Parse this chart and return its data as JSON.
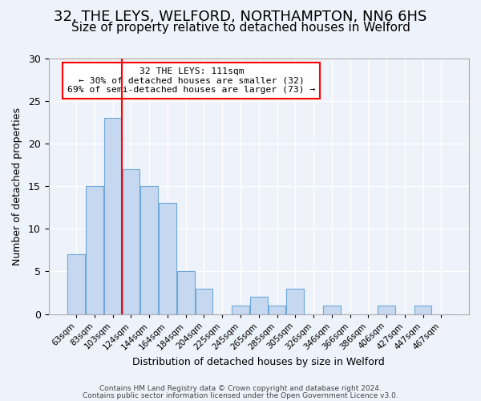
{
  "title": "32, THE LEYS, WELFORD, NORTHAMPTON, NN6 6HS",
  "subtitle": "Size of property relative to detached houses in Welford",
  "xlabel": "Distribution of detached houses by size in Welford",
  "ylabel": "Number of detached properties",
  "bar_labels": [
    "63sqm",
    "83sqm",
    "103sqm",
    "124sqm",
    "144sqm",
    "164sqm",
    "184sqm",
    "204sqm",
    "225sqm",
    "245sqm",
    "265sqm",
    "285sqm",
    "305sqm",
    "326sqm",
    "346sqm",
    "366sqm",
    "386sqm",
    "406sqm",
    "427sqm",
    "447sqm",
    "467sqm"
  ],
  "bar_values": [
    7,
    15,
    23,
    17,
    15,
    13,
    5,
    3,
    0,
    1,
    2,
    1,
    3,
    0,
    1,
    0,
    0,
    1,
    0,
    1,
    0
  ],
  "bar_color": "#c5d8f0",
  "bar_edge_color": "#6ea8d8",
  "red_line_x": 2.5,
  "annotation_title": "32 THE LEYS: 111sqm",
  "annotation_line1": "← 30% of detached houses are smaller (32)",
  "annotation_line2": "69% of semi-detached houses are larger (73) →",
  "ylim": [
    0,
    30
  ],
  "yticks": [
    0,
    5,
    10,
    15,
    20,
    25,
    30
  ],
  "footer1": "Contains HM Land Registry data © Crown copyright and database right 2024.",
  "footer2": "Contains public sector information licensed under the Open Government Licence v3.0.",
  "background_color": "#eef2fa",
  "plot_bg_color": "#eef2fa",
  "grid_color": "#ffffff",
  "title_fontsize": 13,
  "subtitle_fontsize": 11
}
